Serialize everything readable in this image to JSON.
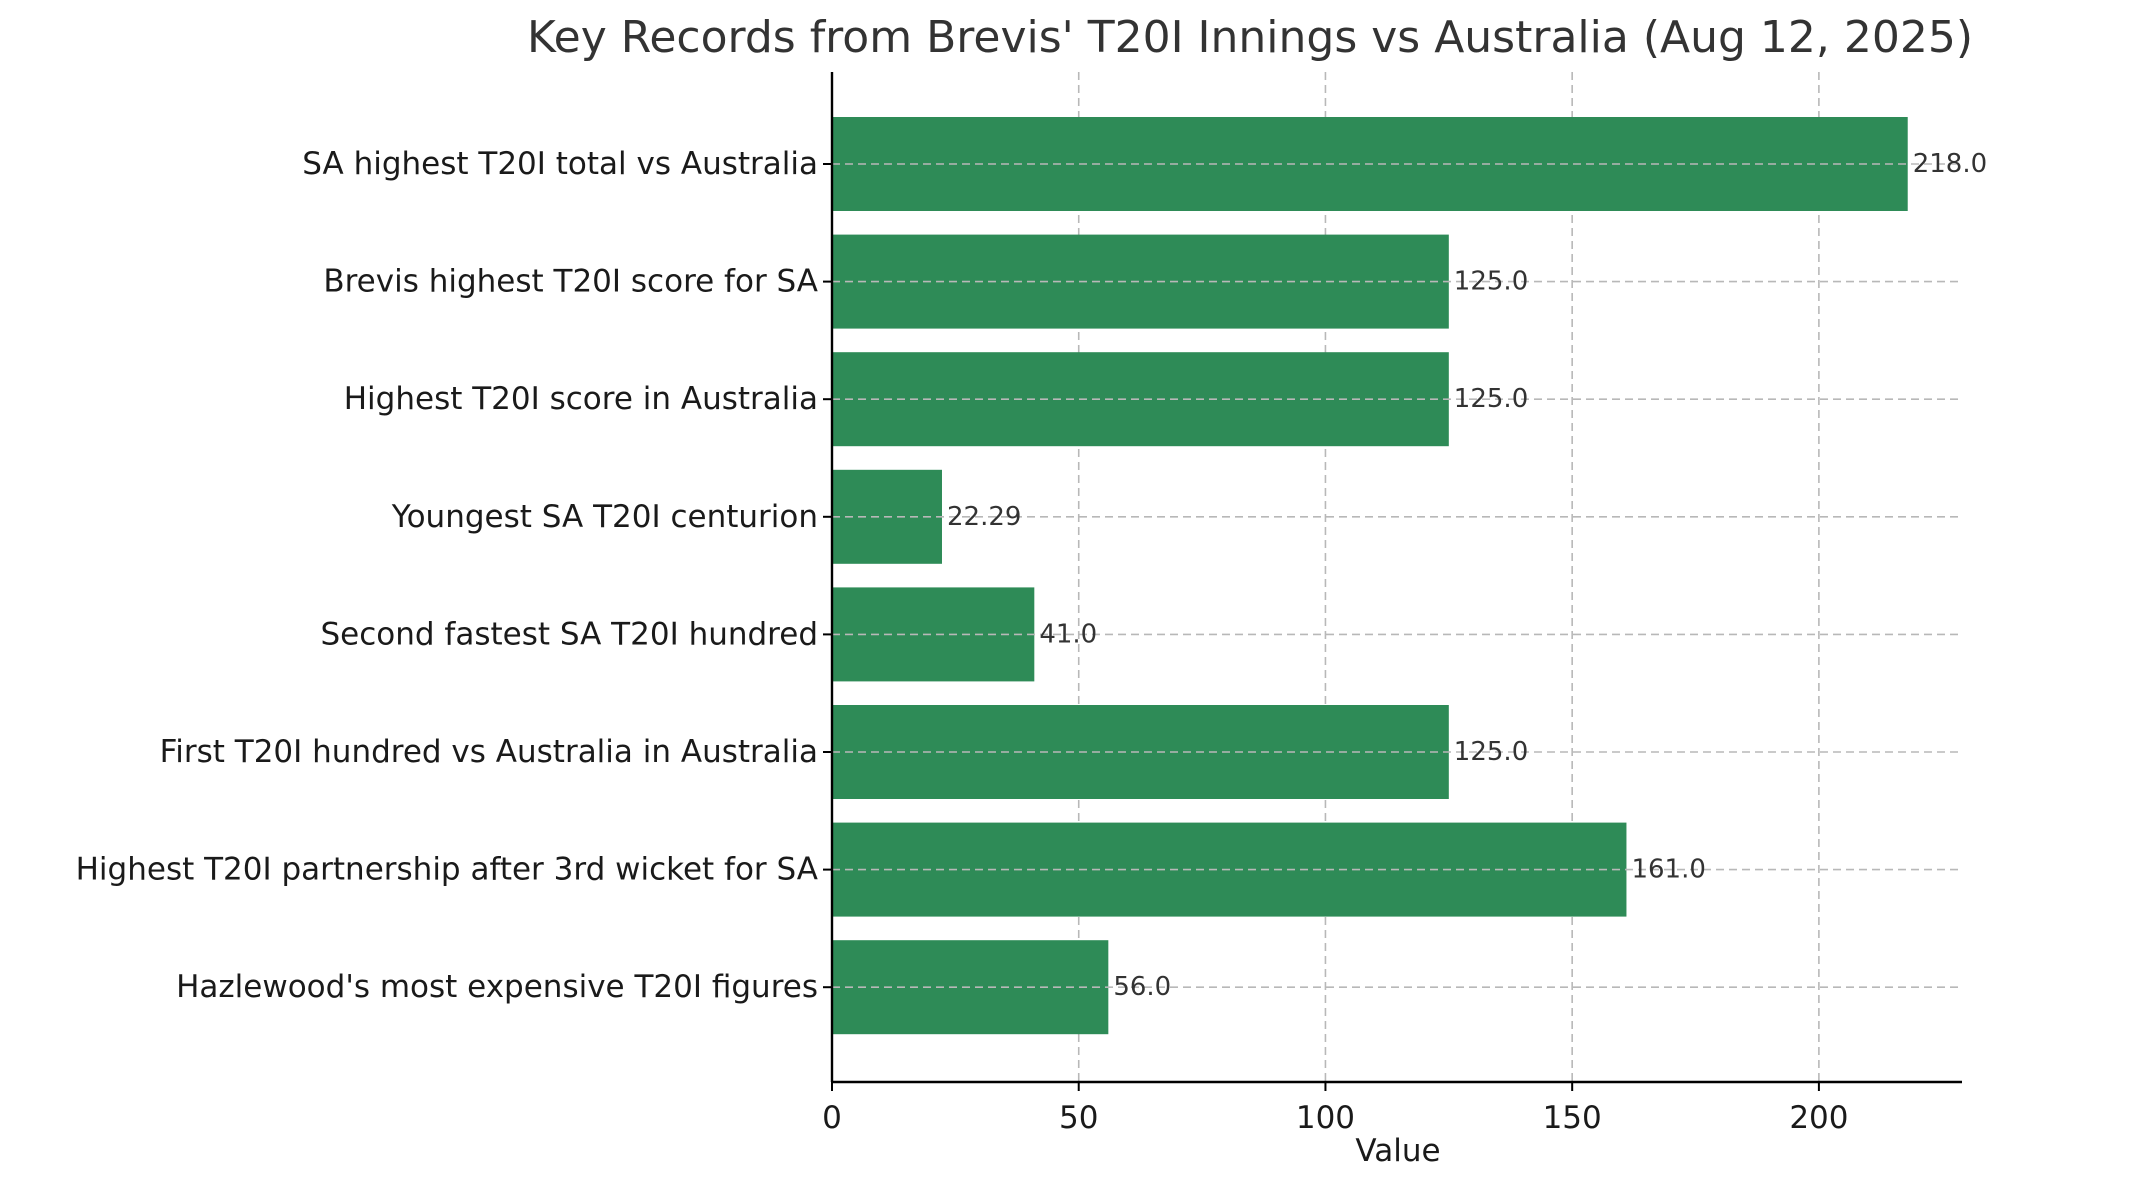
{
  "chart_data": {
    "type": "bar",
    "orientation": "horizontal",
    "title": "Key Records from Brevis' T20I Innings vs Australia (Aug 12, 2025)",
    "xlabel": "Value",
    "ylabel": "",
    "categories": [
      "SA highest T20I total vs Australia",
      "Brevis highest T20I score for SA",
      "Highest T20I score in Australia",
      "Youngest SA T20I centurion",
      "Second fastest SA T20I hundred",
      "First T20I hundred vs Australia in Australia",
      "Highest T20I partnership after 3rd wicket for SA",
      "Hazlewood's most expensive T20I figures"
    ],
    "values": [
      218,
      125,
      125,
      22.29,
      41,
      125,
      161,
      56
    ],
    "value_labels": [
      "218.0",
      "125.0",
      "125.0",
      "22.29",
      "41.0",
      "125.0",
      "161.0",
      "56.0"
    ],
    "xlim": [
      0,
      229
    ],
    "xticks": [
      0,
      50,
      100,
      150,
      200
    ],
    "xtick_labels": [
      "0",
      "50",
      "100",
      "150",
      "200"
    ],
    "grid": true,
    "legend": "none",
    "bar_color": "#2e8b57"
  }
}
